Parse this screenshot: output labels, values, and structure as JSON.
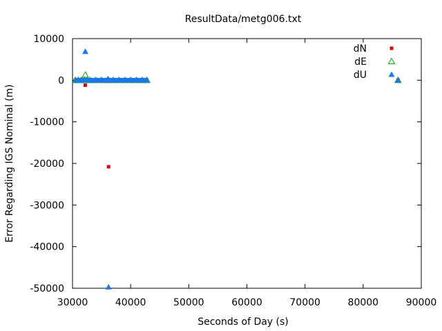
{
  "chart_data": {
    "type": "scatter",
    "title": "ResultData/metg006.txt",
    "xlabel": "Seconds of Day (s)",
    "ylabel": "Error Regarding IGS Nominal (m)",
    "xlim": [
      30000,
      90000
    ],
    "ylim": [
      -50000,
      10000
    ],
    "xticks": [
      30000,
      40000,
      50000,
      60000,
      70000,
      80000,
      90000
    ],
    "yticks": [
      10000,
      0,
      -10000,
      -20000,
      -30000,
      -40000,
      -50000
    ],
    "grid": false,
    "legend_position": "top-right",
    "series": [
      {
        "name": "dN",
        "marker": "filled-square",
        "color": "#e00000",
        "x": [
          30500,
          31000,
          31500,
          32000,
          32200,
          32500,
          33000,
          34000,
          35000,
          36000,
          36200,
          37000,
          38000,
          39000,
          40000,
          41000,
          42000,
          42800,
          86000
        ],
        "y": [
          0,
          0,
          0,
          0,
          -1200,
          0,
          0,
          0,
          0,
          0,
          -20800,
          0,
          0,
          0,
          0,
          0,
          0,
          0,
          0
        ]
      },
      {
        "name": "dE",
        "marker": "open-triangle",
        "color": "#00aa00",
        "x": [
          30500,
          31000,
          31500,
          32000,
          32200,
          32500,
          33000,
          34000,
          35000,
          36000,
          36200,
          37000,
          38000,
          39000,
          40000,
          41000,
          42000,
          42800,
          86000
        ],
        "y": [
          0,
          0,
          0,
          0,
          1300,
          0,
          0,
          0,
          0,
          0,
          0,
          0,
          0,
          0,
          0,
          0,
          0,
          0,
          0
        ]
      },
      {
        "name": "dU",
        "marker": "filled-triangle",
        "color": "#1e78e6",
        "x": [
          30500,
          31000,
          31500,
          32000,
          32200,
          32500,
          33000,
          34000,
          35000,
          36000,
          36100,
          36200,
          37000,
          38000,
          39000,
          40000,
          41000,
          42000,
          42800,
          86000
        ],
        "y": [
          0,
          0,
          0,
          0,
          6900,
          0,
          0,
          0,
          0,
          0,
          300,
          -49700,
          0,
          0,
          0,
          0,
          0,
          0,
          0,
          0
        ]
      }
    ]
  }
}
